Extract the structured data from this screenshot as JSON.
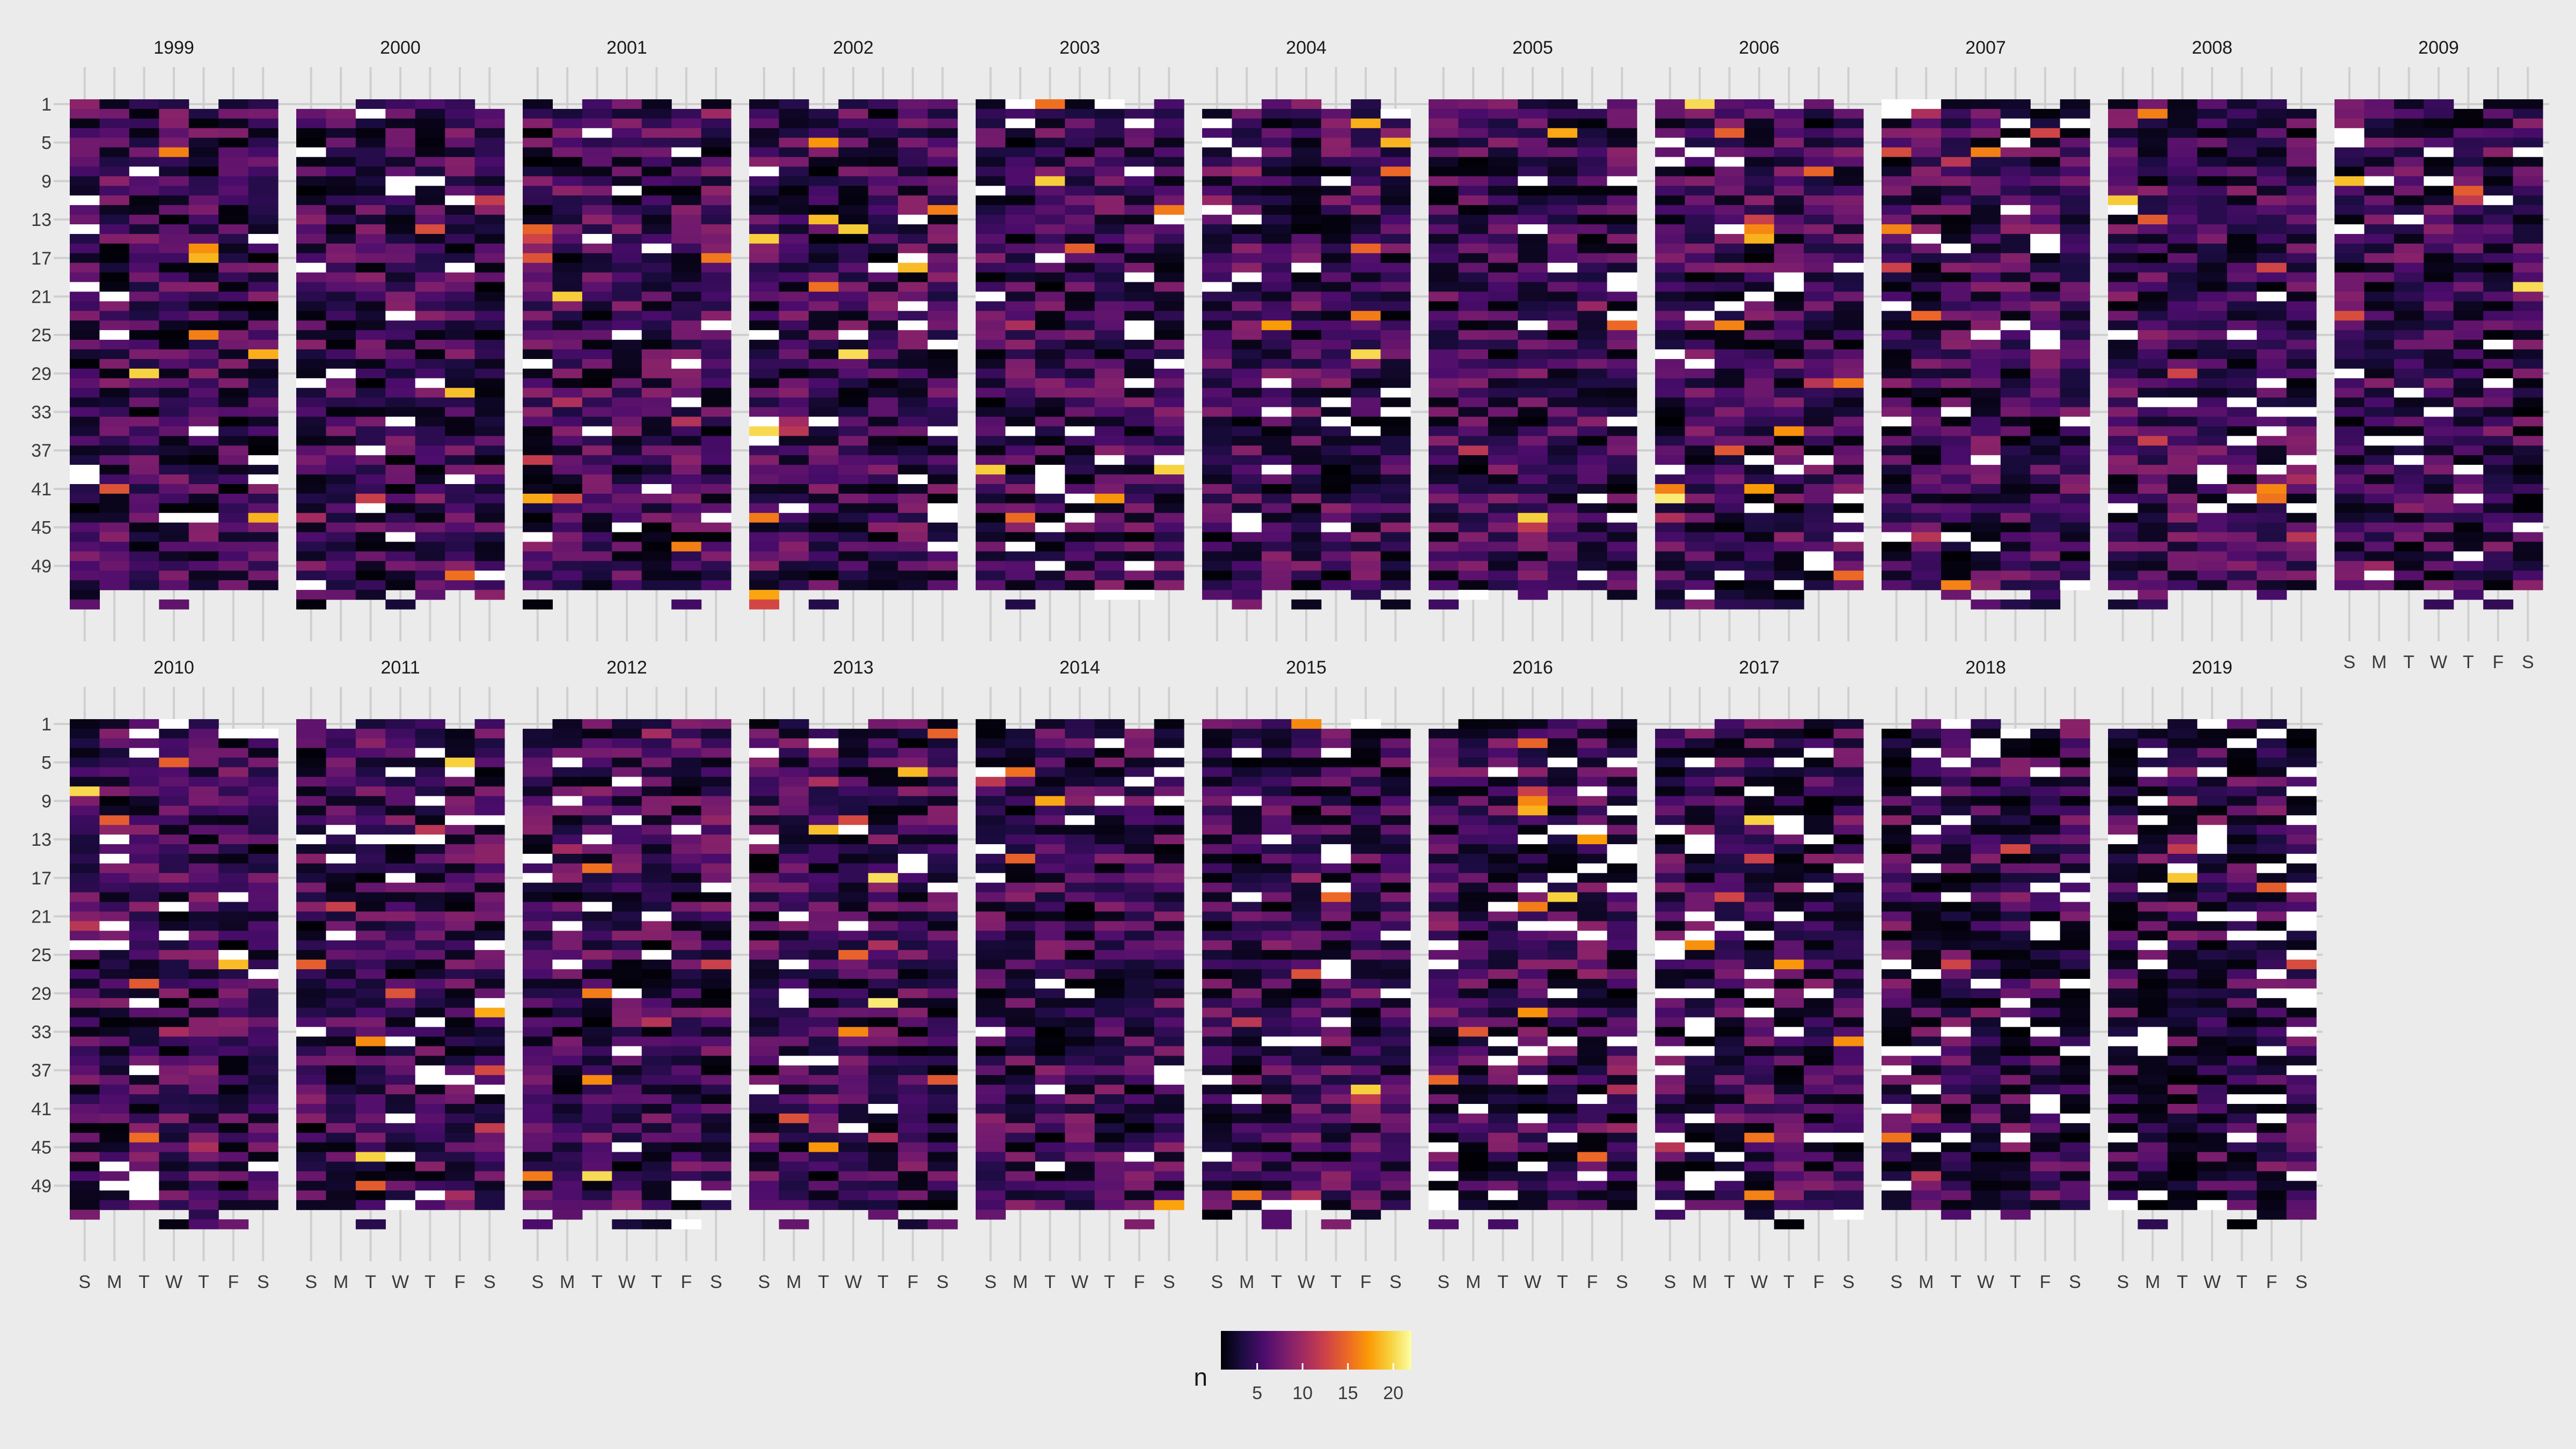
{
  "chart_data": {
    "type": "heatmap",
    "note": "Calendar-style heatmap: one panel per year; x = day of week, y = week of year; cell colour = count n. Cell values are not legible from the image and are omitted.",
    "panels": [
      "1999",
      "2000",
      "2001",
      "2002",
      "2003",
      "2004",
      "2005",
      "2006",
      "2007",
      "2008",
      "2009",
      "2010",
      "2011",
      "2012",
      "2013",
      "2014",
      "2015",
      "2016",
      "2017",
      "2018",
      "2019"
    ],
    "x_categories": [
      "S",
      "M",
      "T",
      "W",
      "T",
      "F",
      "S"
    ],
    "y_ticks": [
      "1",
      "5",
      "9",
      "13",
      "17",
      "21",
      "25",
      "29",
      "33",
      "37",
      "41",
      "45",
      "49"
    ],
    "legend": {
      "title": "n",
      "ticks": [
        "5",
        "10",
        "15",
        "20"
      ],
      "tick_values": [
        5,
        10,
        15,
        20
      ],
      "domain": [
        1,
        22
      ],
      "placement": "bottom-center"
    },
    "colormap": [
      "#000004",
      "#1b0c41",
      "#4a0c6b",
      "#781c6d",
      "#a52c60",
      "#cf4446",
      "#ed6925",
      "#fb9b06",
      "#f7d13d",
      "#fcffa4"
    ],
    "missing_color": "#ffffff",
    "grid": true,
    "grid_color": "#cfcfcf",
    "background_color": "#ebebeb"
  }
}
